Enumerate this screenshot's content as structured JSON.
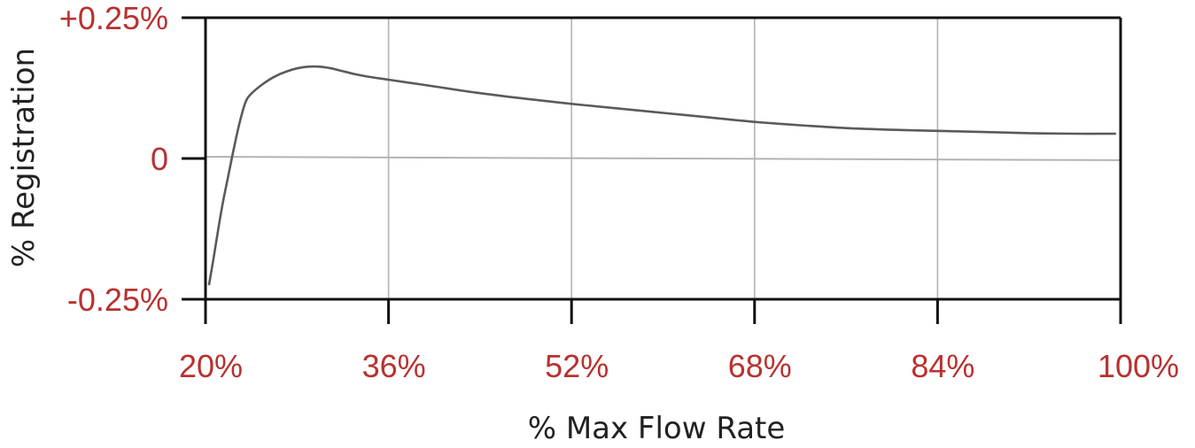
{
  "chart_data": {
    "type": "line",
    "title": "",
    "xlabel": "% Max Flow Rate",
    "ylabel": "% Registration",
    "xlim": [
      20,
      100
    ],
    "ylim": [
      -0.25,
      0.25
    ],
    "x_ticks": [
      20,
      36,
      52,
      68,
      84,
      100
    ],
    "x_tick_labels": [
      "20%",
      "36%",
      "52%",
      "68%",
      "84%",
      "100%"
    ],
    "y_ticks": [
      -0.25,
      0,
      0.25
    ],
    "y_tick_labels": [
      "-0.25%",
      "0",
      "+0.25%"
    ],
    "grid": "vertical",
    "legend": "none",
    "colors": {
      "tick_text": "#b8312f",
      "curve": "#5a5a5a",
      "grid": "#b3b3b3",
      "axis": "#111111",
      "zero_line": "#b3b3b3"
    },
    "zero_line": {
      "x": [
        20,
        100
      ],
      "y": [
        0.003,
        -0.003
      ]
    },
    "series": [
      {
        "x": [
          20.3,
          20.6,
          21,
          21.5,
          22,
          22.5,
          23,
          23.5,
          24,
          25,
          26,
          27,
          28,
          29,
          30,
          31,
          32,
          33,
          34,
          36,
          38,
          40,
          44,
          48,
          52,
          56,
          60,
          64,
          68,
          72,
          76,
          80,
          84,
          88,
          92,
          96,
          99.6
        ],
        "y": [
          -0.225,
          -0.19,
          -0.14,
          -0.08,
          -0.03,
          0.02,
          0.065,
          0.1,
          0.115,
          0.132,
          0.145,
          0.154,
          0.16,
          0.163,
          0.163,
          0.16,
          0.155,
          0.15,
          0.146,
          0.14,
          0.134,
          0.128,
          0.116,
          0.106,
          0.097,
          0.089,
          0.081,
          0.073,
          0.065,
          0.059,
          0.054,
          0.051,
          0.049,
          0.047,
          0.045,
          0.044,
          0.044
        ]
      }
    ]
  }
}
